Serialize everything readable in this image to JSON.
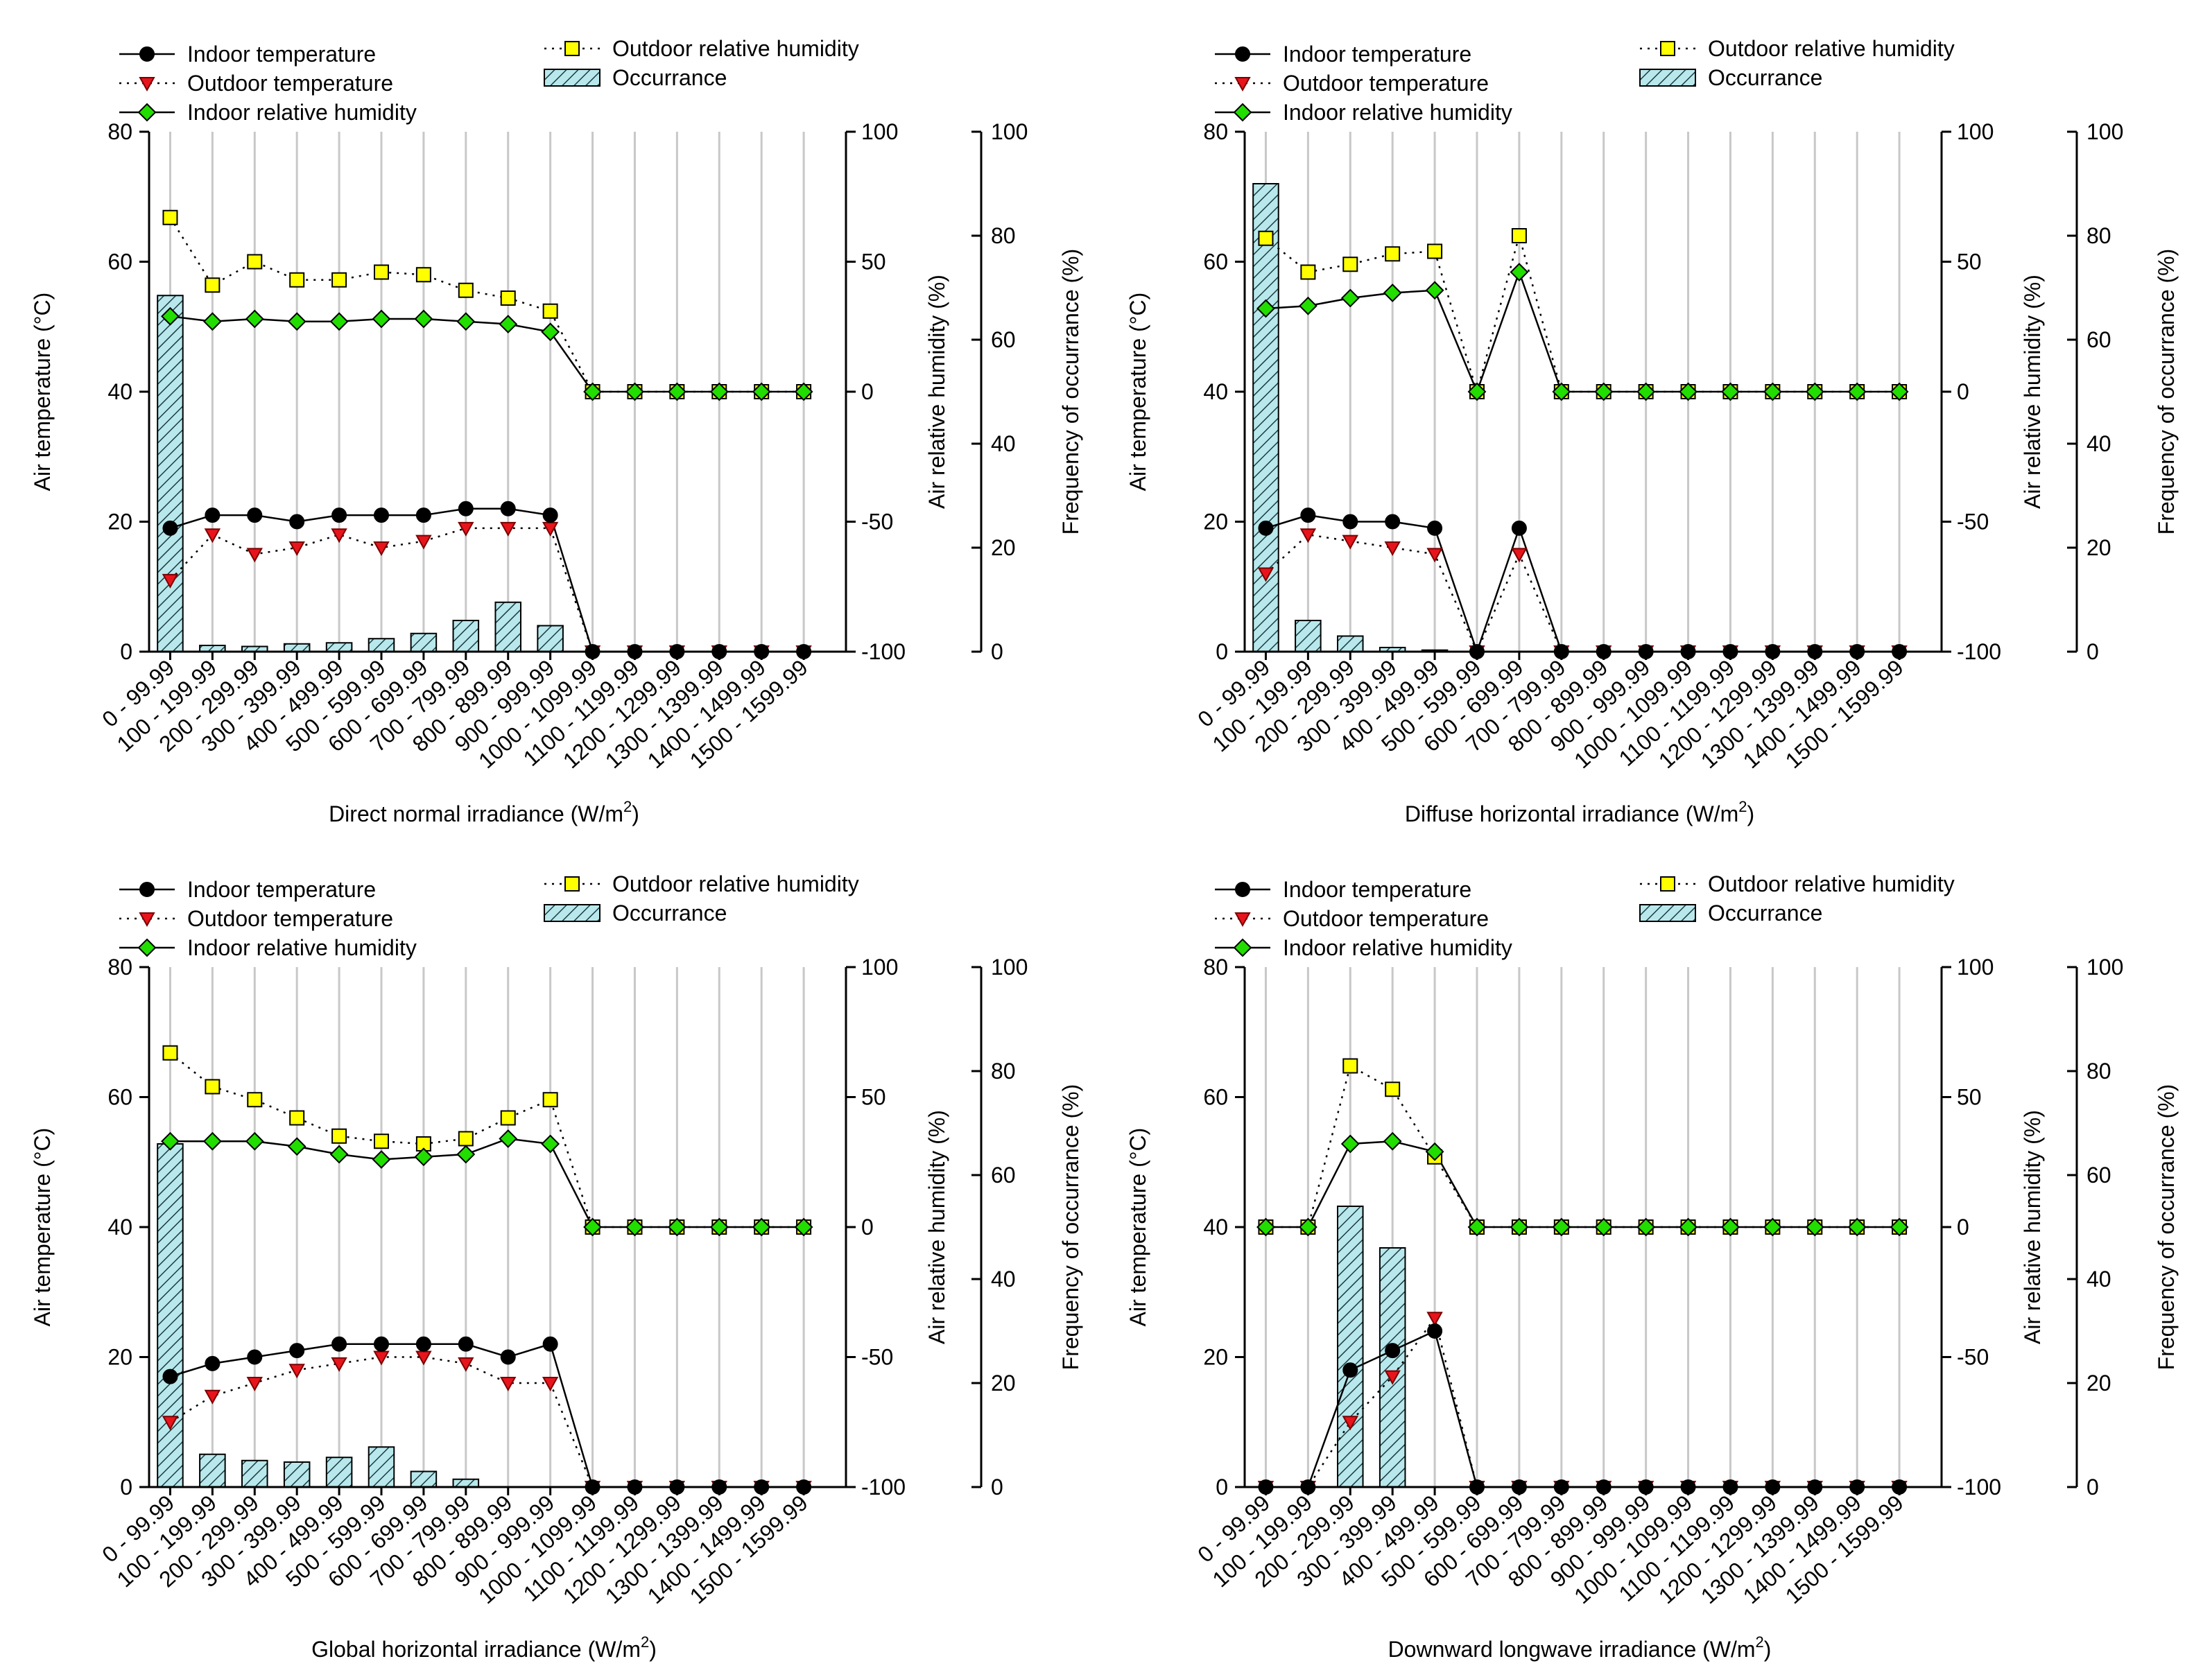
{
  "figure": {
    "legend": {
      "indoor_temp": "Indoor temperature",
      "outdoor_temp": "Outdoor temperature",
      "indoor_rh": "Indoor relative humidity",
      "outdoor_rh": "Outdoor relative humidity",
      "occurrence": "Occurrance"
    },
    "axis_titles": {
      "y_left": "Air temperature (°C)",
      "y_right1": "Air relative humidity (%)",
      "y_right2": "Frequency of occurrance (%)"
    },
    "colors": {
      "indoor_temp": "#000000",
      "outdoor_temp": "#e8141c",
      "indoor_rh": "#22dd00",
      "outdoor_rh": "#ffff00",
      "occurrence_fill": "#b8e8ec",
      "grid": "#c8c8c8"
    }
  },
  "chart_data": [
    {
      "type": "line",
      "title": "",
      "xlabel": "Direct normal irradiance (W/m²)",
      "categories": [
        "0 - 99.99",
        "100 - 199.99",
        "200 - 299.99",
        "300 - 399.99",
        "400 - 499.99",
        "500 - 599.99",
        "600 - 699.99",
        "700 - 799.99",
        "800 - 899.99",
        "900 - 999.99",
        "1000 - 1099.99",
        "1100 - 1199.99",
        "1200 - 1299.99",
        "1300 - 1399.99",
        "1400 - 1499.99",
        "1500 - 1599.99"
      ],
      "ylim_temp": [
        0,
        80
      ],
      "ylim_rh": [
        -100,
        100
      ],
      "ylim_freq": [
        0,
        100
      ],
      "yticks_temp": [
        0,
        20,
        40,
        60,
        80
      ],
      "yticks_rh": [
        -100,
        -50,
        0,
        50,
        100
      ],
      "yticks_freq": [
        0,
        20,
        40,
        60,
        80,
        100
      ],
      "series": [
        {
          "name": "Indoor temperature",
          "axis": "temp",
          "values": [
            19,
            21,
            21,
            20,
            21,
            21,
            21,
            22,
            22,
            21,
            0,
            0,
            0,
            0,
            0,
            0
          ]
        },
        {
          "name": "Outdoor temperature",
          "axis": "temp",
          "values": [
            11,
            18,
            15,
            16,
            18,
            16,
            17,
            19,
            19,
            19,
            0,
            0,
            0,
            0,
            0,
            0
          ]
        },
        {
          "name": "Indoor relative humidity",
          "axis": "rh",
          "values": [
            29,
            27,
            28,
            27,
            27,
            28,
            28,
            27,
            26,
            23,
            0,
            0,
            0,
            0,
            0,
            0
          ]
        },
        {
          "name": "Outdoor relative humidity",
          "axis": "rh",
          "values": [
            67,
            41,
            50,
            43,
            43,
            46,
            45,
            39,
            36,
            31,
            0,
            0,
            0,
            0,
            0,
            0
          ]
        },
        {
          "name": "Occurrance",
          "axis": "freq",
          "values": [
            68.5,
            1.2,
            1.0,
            1.5,
            1.7,
            2.5,
            3.5,
            6.0,
            9.5,
            5.0,
            0,
            0,
            0,
            0,
            0,
            0
          ]
        }
      ]
    },
    {
      "type": "line",
      "title": "",
      "xlabel": "Diffuse horizontal irradiance (W/m²)",
      "categories": [
        "0 - 99.99",
        "100 - 199.99",
        "200 - 299.99",
        "300 - 399.99",
        "400 - 499.99",
        "500 - 599.99",
        "600 - 699.99",
        "700 - 799.99",
        "800 - 899.99",
        "900 - 999.99",
        "1000 - 1099.99",
        "1100 - 1199.99",
        "1200 - 1299.99",
        "1300 - 1399.99",
        "1400 - 1499.99",
        "1500 - 1599.99"
      ],
      "ylim_temp": [
        0,
        80
      ],
      "ylim_rh": [
        -100,
        100
      ],
      "ylim_freq": [
        0,
        100
      ],
      "yticks_temp": [
        0,
        20,
        40,
        60,
        80
      ],
      "yticks_rh": [
        -100,
        -50,
        0,
        50,
        100
      ],
      "yticks_freq": [
        0,
        20,
        40,
        60,
        80,
        100
      ],
      "series": [
        {
          "name": "Indoor temperature",
          "axis": "temp",
          "values": [
            19,
            21,
            20,
            20,
            19,
            0,
            19,
            0,
            0,
            0,
            0,
            0,
            0,
            0,
            0,
            0
          ]
        },
        {
          "name": "Outdoor temperature",
          "axis": "temp",
          "values": [
            12,
            18,
            17,
            16,
            15,
            0,
            15,
            0,
            0,
            0,
            0,
            0,
            0,
            0,
            0,
            0
          ]
        },
        {
          "name": "Indoor relative humidity",
          "axis": "rh",
          "values": [
            32,
            33,
            36,
            38,
            39,
            0,
            46,
            0,
            0,
            0,
            0,
            0,
            0,
            0,
            0,
            0
          ]
        },
        {
          "name": "Outdoor relative humidity",
          "axis": "rh",
          "values": [
            59,
            46,
            49,
            53,
            54,
            0,
            60,
            0,
            0,
            0,
            0,
            0,
            0,
            0,
            0,
            0
          ]
        },
        {
          "name": "Occurrance",
          "axis": "freq",
          "values": [
            90,
            6,
            3,
            0.8,
            0.3,
            0,
            0,
            0,
            0,
            0,
            0,
            0,
            0,
            0,
            0,
            0
          ]
        }
      ]
    },
    {
      "type": "line",
      "title": "",
      "xlabel": "Global horizontal irradiance (W/m²)",
      "categories": [
        "0 - 99.99",
        "100 - 199.99",
        "200 - 299.99",
        "300 - 399.99",
        "400 - 499.99",
        "500 - 599.99",
        "600 - 699.99",
        "700 - 799.99",
        "800 - 899.99",
        "900 - 999.99",
        "1000 - 1099.99",
        "1100 - 1199.99",
        "1200 - 1299.99",
        "1300 - 1399.99",
        "1400 - 1499.99",
        "1500 - 1599.99"
      ],
      "ylim_temp": [
        0,
        80
      ],
      "ylim_rh": [
        -100,
        100
      ],
      "ylim_freq": [
        0,
        100
      ],
      "yticks_temp": [
        0,
        20,
        40,
        60,
        80
      ],
      "yticks_rh": [
        -100,
        -50,
        0,
        50,
        100
      ],
      "yticks_freq": [
        0,
        20,
        40,
        60,
        80,
        100
      ],
      "series": [
        {
          "name": "Indoor temperature",
          "axis": "temp",
          "values": [
            17,
            19,
            20,
            21,
            22,
            22,
            22,
            22,
            20,
            22,
            0,
            0,
            0,
            0,
            0,
            0
          ]
        },
        {
          "name": "Outdoor temperature",
          "axis": "temp",
          "values": [
            10,
            14,
            16,
            18,
            19,
            20,
            20,
            19,
            16,
            16,
            0,
            0,
            0,
            0,
            0,
            0
          ]
        },
        {
          "name": "Indoor relative humidity",
          "axis": "rh",
          "values": [
            33,
            33,
            33,
            31,
            28,
            26,
            27,
            28,
            34,
            32,
            0,
            0,
            0,
            0,
            0,
            0
          ]
        },
        {
          "name": "Outdoor relative humidity",
          "axis": "rh",
          "values": [
            67,
            54,
            49,
            42,
            35,
            33,
            32,
            34,
            42,
            49,
            0,
            0,
            0,
            0,
            0,
            0
          ]
        },
        {
          "name": "Occurrance",
          "axis": "freq",
          "values": [
            66,
            6.3,
            5.1,
            4.8,
            5.7,
            7.7,
            3,
            1.5,
            0,
            0,
            0,
            0,
            0,
            0,
            0,
            0
          ]
        }
      ]
    },
    {
      "type": "line",
      "title": "",
      "xlabel": "Downward longwave irradiance (W/m²)",
      "categories": [
        "0 - 99.99",
        "100 - 199.99",
        "200 - 299.99",
        "300 - 399.99",
        "400 - 499.99",
        "500 - 599.99",
        "600 - 699.99",
        "700 - 799.99",
        "800 - 899.99",
        "900 - 999.99",
        "1000 - 1099.99",
        "1100 - 1199.99",
        "1200 - 1299.99",
        "1300 - 1399.99",
        "1400 - 1499.99",
        "1500 - 1599.99"
      ],
      "ylim_temp": [
        0,
        80
      ],
      "ylim_rh": [
        -100,
        100
      ],
      "ylim_freq": [
        0,
        100
      ],
      "yticks_temp": [
        0,
        20,
        40,
        60,
        80
      ],
      "yticks_rh": [
        -100,
        -50,
        0,
        50,
        100
      ],
      "yticks_freq": [
        0,
        20,
        40,
        60,
        80,
        100
      ],
      "series": [
        {
          "name": "Indoor temperature",
          "axis": "temp",
          "values": [
            0,
            0,
            18,
            21,
            24,
            0,
            0,
            0,
            0,
            0,
            0,
            0,
            0,
            0,
            0,
            0
          ]
        },
        {
          "name": "Outdoor temperature",
          "axis": "temp",
          "values": [
            0,
            0,
            10,
            17,
            26,
            0,
            0,
            0,
            0,
            0,
            0,
            0,
            0,
            0,
            0,
            0
          ]
        },
        {
          "name": "Indoor relative humidity",
          "axis": "rh",
          "values": [
            0,
            0,
            32,
            33,
            29,
            0,
            0,
            0,
            0,
            0,
            0,
            0,
            0,
            0,
            0,
            0
          ]
        },
        {
          "name": "Outdoor relative humidity",
          "axis": "rh",
          "values": [
            0,
            0,
            62,
            53,
            27,
            0,
            0,
            0,
            0,
            0,
            0,
            0,
            0,
            0,
            0,
            0
          ]
        },
        {
          "name": "Occurrance",
          "axis": "freq",
          "values": [
            0,
            0,
            54,
            46,
            0,
            0,
            0,
            0,
            0,
            0,
            0,
            0,
            0,
            0,
            0,
            0
          ]
        }
      ]
    }
  ]
}
